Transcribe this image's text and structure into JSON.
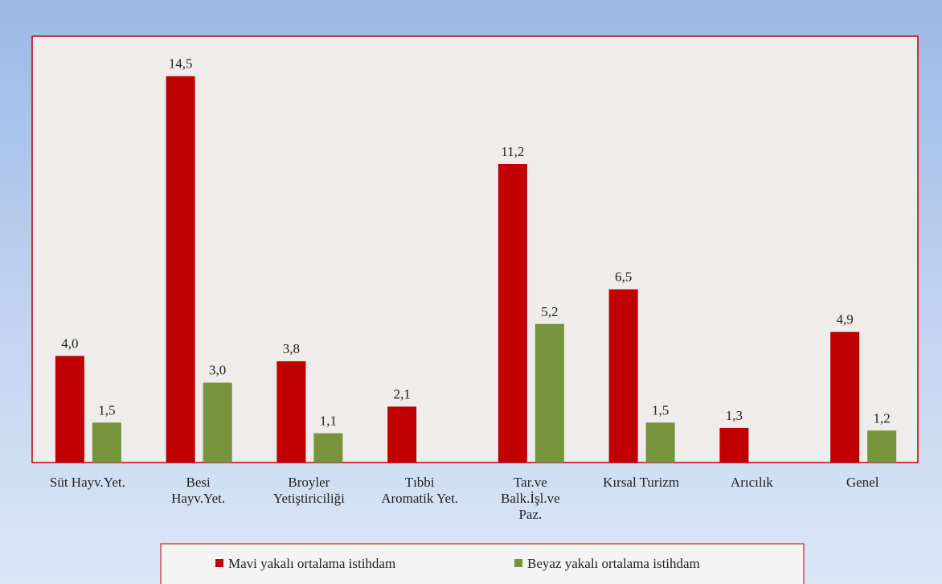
{
  "chart_data": {
    "type": "bar",
    "categories": [
      "Süt Hayv.Yet.",
      "Besi\nHayv.Yet.",
      "Broyler\nYetiştiriciliği",
      "Tıbbi\nAromatik Yet.",
      "Tar.ve\nBalk.İşl.ve\nPaz.",
      "Kırsal Turizm",
      "Arıcılık",
      "Genel"
    ],
    "series": [
      {
        "name": "Mavi yakalı ortalama istihdam",
        "color": "#c00000",
        "values": [
          4.0,
          14.5,
          3.8,
          2.1,
          11.2,
          6.5,
          1.3,
          4.9
        ],
        "value_labels": [
          "4,0",
          "14,5",
          "3,8",
          "2,1",
          "11,2",
          "6,5",
          "1,3",
          "4,9"
        ]
      },
      {
        "name": "Beyaz yakalı ortalama istihdam",
        "color": "#77933c",
        "values": [
          1.5,
          3.0,
          1.1,
          null,
          5.2,
          1.5,
          null,
          1.2
        ],
        "value_labels": [
          "1,5",
          "3,0",
          "1,1",
          null,
          "5,2",
          "1,5",
          null,
          "1,2"
        ]
      }
    ],
    "ylim": [
      0,
      16
    ]
  }
}
